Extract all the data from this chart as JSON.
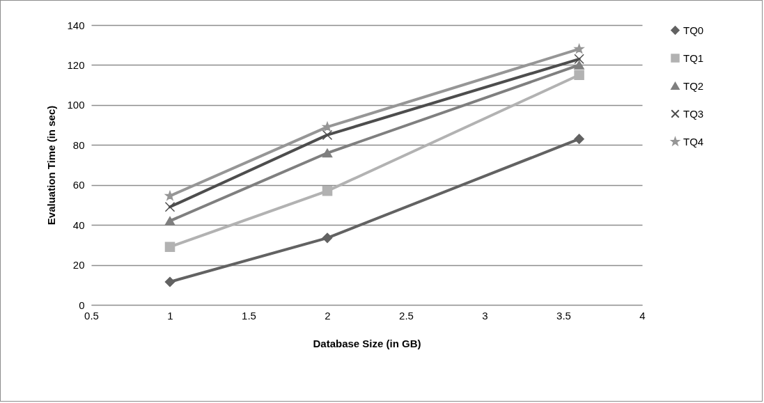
{
  "chart_data": {
    "type": "line",
    "xlabel": "Database Size (in GB)",
    "ylabel": "Evaluation Time (in sec)",
    "x": [
      1,
      2,
      3.6
    ],
    "series": [
      {
        "name": "TQ0",
        "color": "#626262",
        "marker": "diamond",
        "values": [
          11.5,
          33.5,
          83
        ]
      },
      {
        "name": "TQ1",
        "color": "#b2b2b2",
        "marker": "square",
        "values": [
          29,
          57,
          115
        ]
      },
      {
        "name": "TQ2",
        "color": "#7f7f7f",
        "marker": "triangle",
        "values": [
          42,
          76,
          120
        ]
      },
      {
        "name": "TQ3",
        "color": "#4d4d4d",
        "marker": "cross",
        "values": [
          49,
          85,
          123
        ]
      },
      {
        "name": "TQ4",
        "color": "#969696",
        "marker": "star",
        "values": [
          54.5,
          89,
          128
        ]
      }
    ],
    "xlim": [
      0.5,
      4
    ],
    "xticks": [
      0.5,
      1,
      1.5,
      2,
      2.5,
      3,
      3.5,
      4
    ],
    "ylim": [
      0,
      140
    ],
    "yticks": [
      0,
      20,
      40,
      60,
      80,
      100,
      120,
      140
    ],
    "grid": "y",
    "legend": "right"
  }
}
